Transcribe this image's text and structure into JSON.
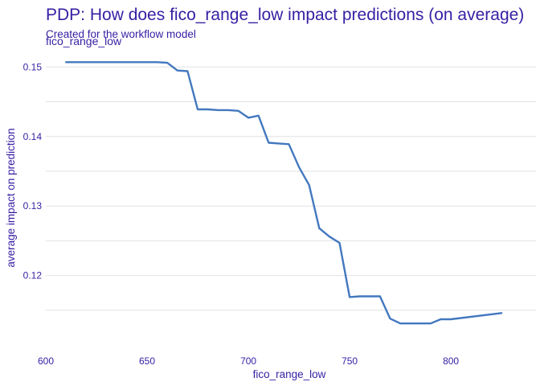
{
  "chart_data": {
    "type": "line",
    "title": "PDP: How does fico_range_low impact predictions (on average)",
    "subtitle": "Created for the workflow model",
    "facet_label": "fico_range_low",
    "xlabel": "fico_range_low",
    "ylabel": "average impact on prediction",
    "xlim": [
      600,
      842
    ],
    "ylim": [
      0.1122,
      0.1527
    ],
    "x_ticks": [
      600,
      650,
      700,
      750,
      800
    ],
    "y_ticks": [
      0.12,
      0.13,
      0.14,
      0.15
    ],
    "y_gridlines": [
      0.115,
      0.12,
      0.125,
      0.13,
      0.135,
      0.14,
      0.145,
      0.15
    ],
    "grid": true,
    "legend": "none",
    "series": [
      {
        "color": "#4378bf",
        "x": [
          610,
          615,
          620,
          625,
          630,
          635,
          640,
          645,
          650,
          655,
          660,
          665,
          670,
          675,
          680,
          685,
          690,
          695,
          700,
          705,
          710,
          715,
          720,
          725,
          730,
          735,
          740,
          745,
          750,
          755,
          760,
          765,
          770,
          775,
          780,
          785,
          790,
          795,
          800,
          825
        ],
        "y": [
          0.1507,
          0.1507,
          0.1507,
          0.1507,
          0.1507,
          0.1507,
          0.1507,
          0.1507,
          0.1507,
          0.1507,
          0.1506,
          0.1495,
          0.1494,
          0.1439,
          0.1439,
          0.1438,
          0.1438,
          0.1437,
          0.1427,
          0.143,
          0.1391,
          0.139,
          0.1389,
          0.1356,
          0.133,
          0.1268,
          0.1256,
          0.1247,
          0.1169,
          0.117,
          0.117,
          0.117,
          0.1138,
          0.1131,
          0.1131,
          0.1131,
          0.1131,
          0.1137,
          0.1137,
          0.1146
        ]
      }
    ]
  }
}
